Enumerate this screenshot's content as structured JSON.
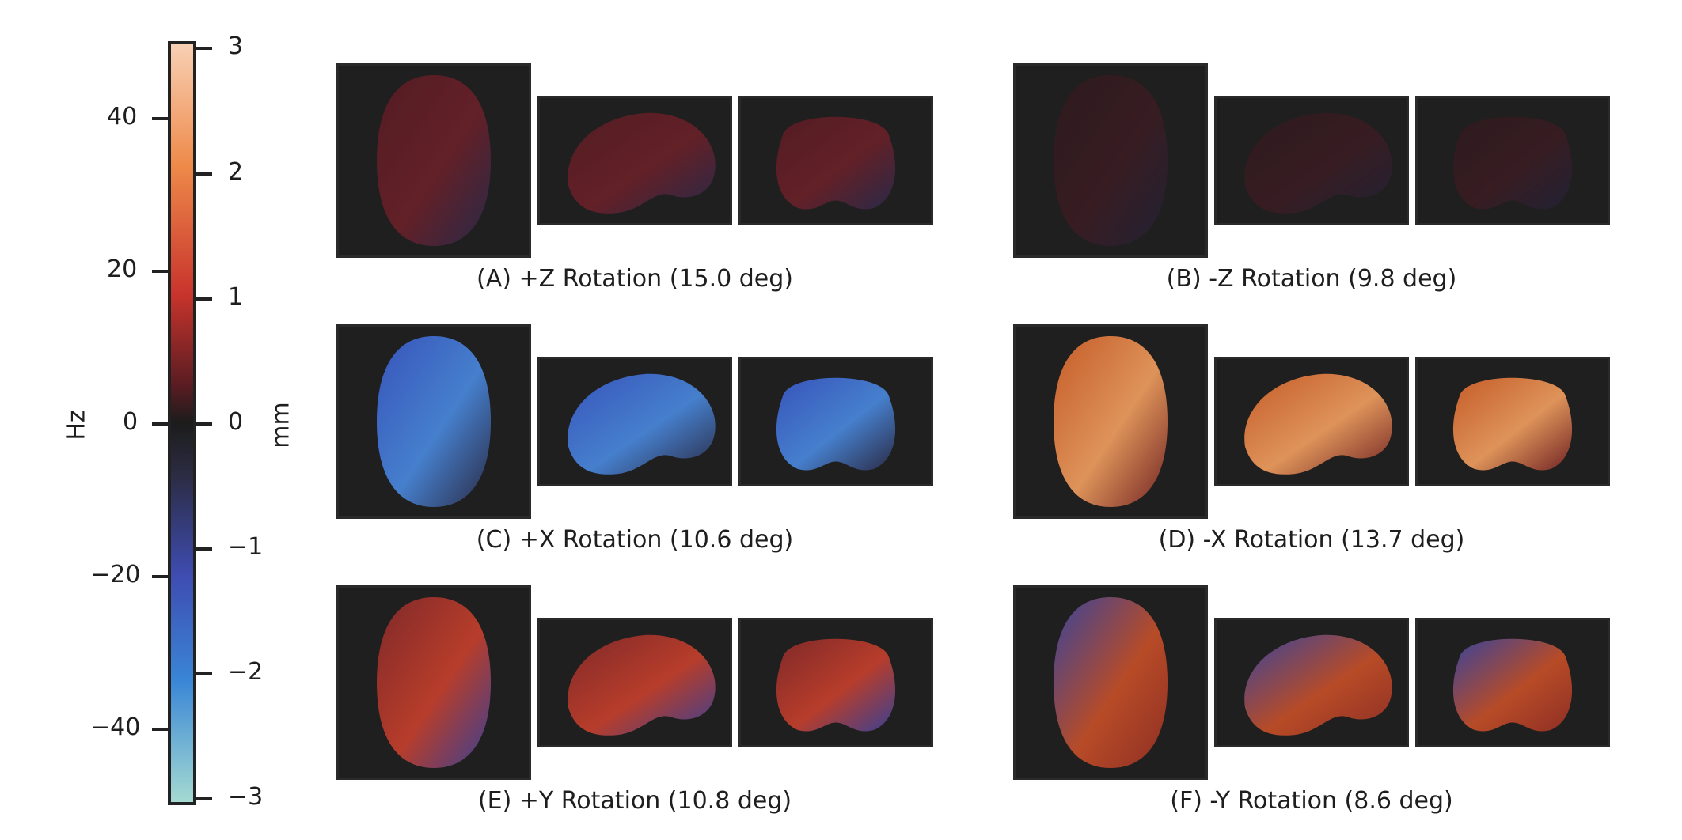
{
  "colorbar": {
    "left_axis": {
      "label": "Hz",
      "ticks": [
        "40",
        "20",
        "0",
        "−20",
        "−40"
      ],
      "range": [
        -49,
        49
      ]
    },
    "right_axis": {
      "label": "mm",
      "ticks": [
        "3",
        "2",
        "1",
        "0",
        "−1",
        "−2",
        "−3"
      ],
      "range": [
        -3,
        3
      ]
    },
    "colors": [
      "#9fd6d0",
      "#3a7fd0",
      "#3f4bb0",
      "#2a2a3a",
      "#1a1a1a",
      "#3a1a22",
      "#a02030",
      "#e06a2a",
      "#f8c8a8"
    ]
  },
  "panels": [
    {
      "id": "A",
      "caption": "(A) +Z Rotation (15.0 deg)",
      "tone": "mild-red-blue"
    },
    {
      "id": "B",
      "caption": "(B) -Z Rotation (9.8 deg)",
      "tone": "faint"
    },
    {
      "id": "C",
      "caption": "(C) +X Rotation (10.6 deg)",
      "tone": "blue"
    },
    {
      "id": "D",
      "caption": "(D) -X Rotation (13.7 deg)",
      "tone": "orange"
    },
    {
      "id": "E",
      "caption": "(E) +Y Rotation (10.8 deg)",
      "tone": "red-blue"
    },
    {
      "id": "F",
      "caption": "(F) -Y Rotation (8.6 deg)",
      "tone": "blue-red"
    }
  ]
}
